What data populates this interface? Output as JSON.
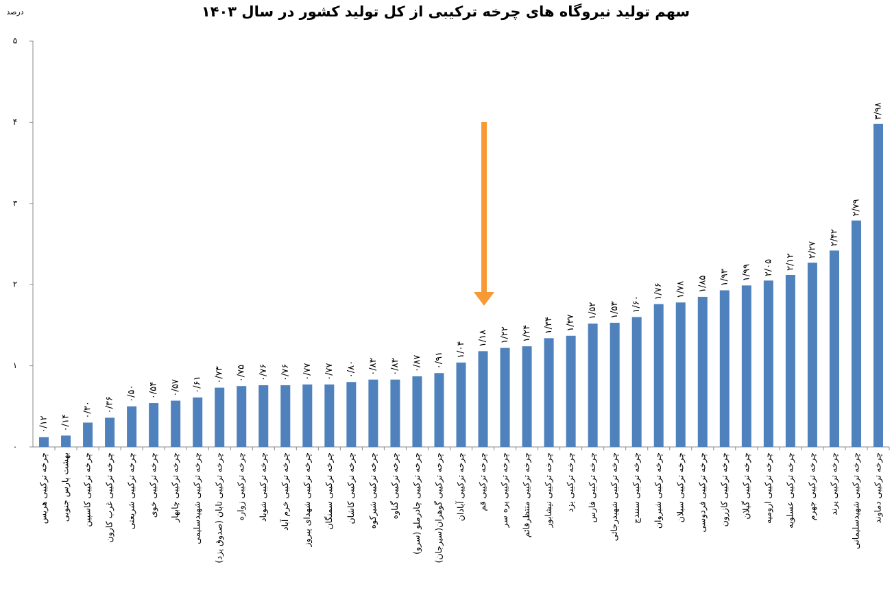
{
  "chart_data": {
    "type": "bar",
    "title": "سهم تولید نیروگاه های چرخه ترکیبی از کل تولید کشور در سال ۱۴۰۳",
    "y_label": "درصد",
    "categories": [
      "چرخه ترکیبی هریس",
      "بهشت پارس جنوبی",
      "چرخه ترکیبی کاسپین",
      "چرخه ترکیبی غرب کارون",
      "چرخه ترکیبی شریعتی",
      "چرخه ترکیبی خوی",
      "چرخه ترکیبی چابهار",
      "چرخه ترکیبی شهیدسلیمی",
      "چرخه ترکیبی تابان (صدوق یزد)",
      "چرخه ترکیبی زواره",
      "چرخه ترکیبی شوباد",
      "چرخه ترکیبی خرم آباد",
      "چرخه ترکیبی شهدای پیروز",
      "چرخه ترکیبی سمنگان",
      "چرخه ترکیبی کاشان",
      "چرخه ترکیبی شیرکوه",
      "چرخه ترکیبی گناوه",
      "چرخه ترکیبی چادرملو (سرو)",
      "چرخه ترکیبی گوهران(سیرجان)",
      "چرخه ترکیبی آبادان",
      "چرخه ترکیبی قم",
      "چرخه ترکیبی پره سر",
      "چرخه ترکیبی منتظرقائم",
      "چرخه ترکیبی نیشابور",
      "چرخه ترکیبی یزد",
      "چرخه ترکیبی فارس",
      "چرخه ترکیبی شهیدرجائی",
      "چرخه ترکیبی سنندج",
      "چرخه ترکیبی شیروان",
      "چرخه ترکیبی سبلان",
      "چرخه ترکیبی فردوسی",
      "چرخه ترکیبی کازرون",
      "چرخه ترکیبی گیلان",
      "چرخه ترکیبی ارومیه",
      "چرخه ترکیبی عسلویه",
      "چرخه ترکیبی جهرم",
      "چرخه ترکیبی پرند",
      "چرخه ترکیبی شهیدسلیمانی",
      "چرخه ترکیبی دماوند"
    ],
    "values": [
      0.12,
      0.14,
      0.3,
      0.36,
      0.5,
      0.54,
      0.57,
      0.61,
      0.73,
      0.75,
      0.76,
      0.76,
      0.77,
      0.77,
      0.8,
      0.83,
      0.83,
      0.87,
      0.91,
      1.04,
      1.18,
      1.22,
      1.24,
      1.34,
      1.37,
      1.52,
      1.53,
      1.6,
      1.76,
      1.78,
      1.85,
      1.93,
      1.99,
      2.05,
      2.12,
      2.27,
      2.42,
      2.79,
      3.98
    ],
    "value_labels": [
      "۰/۱۲",
      "۰/۱۴",
      "۰/۳۰",
      "۰/۳۶",
      "۰/۵۰",
      "۰/۵۴",
      "۰/۵۷",
      "۰/۶۱",
      "۰/۷۳",
      "۰/۷۵",
      "۰/۷۶",
      "۰/۷۶",
      "۰/۷۷",
      "۰/۷۷",
      "۰/۸۰",
      "۰/۸۳",
      "۰/۸۳",
      "۰/۸۷",
      "۰/۹۱",
      "۱/۰۴",
      "۱/۱۸",
      "۱/۲۲",
      "۱/۲۴",
      "۱/۳۴",
      "۱/۳۷",
      "۱/۵۲",
      "۱/۵۳",
      "۱/۶۰",
      "۱/۷۶",
      "۱/۷۸",
      "۱/۸۵",
      "۱/۹۳",
      "۱/۹۹",
      "۲/۰۵",
      "۲/۱۲",
      "۲/۲۷",
      "۲/۴۲",
      "۲/۷۹",
      "۳/۹۸"
    ],
    "color": "#4f81bd",
    "ylim": [
      0,
      5
    ],
    "yticks": [
      {
        "value": 0,
        "label": "۰"
      },
      {
        "value": 1,
        "label": "۱"
      },
      {
        "value": 2,
        "label": "۲"
      },
      {
        "value": 3,
        "label": "۳"
      },
      {
        "value": 4,
        "label": "۴"
      },
      {
        "value": 5,
        "label": "۵"
      }
    ],
    "grid": false
  }
}
